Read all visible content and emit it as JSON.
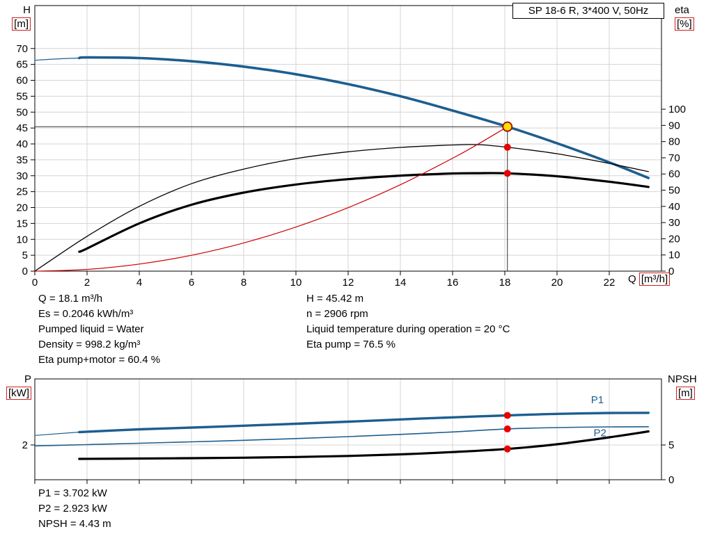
{
  "title_box": "SP 18-6 R, 3*400 V, 50Hz",
  "axis_labels": {
    "top_left": {
      "symbol": "H",
      "unit": "[m]"
    },
    "top_right": {
      "symbol": "eta",
      "unit": "[%]"
    },
    "x": {
      "symbol": "Q",
      "unit": "[m³/h]"
    },
    "bottom_left": {
      "symbol": "P",
      "unit": "[kW]"
    },
    "bottom_right": {
      "symbol": "NPSH",
      "unit": "[m]"
    }
  },
  "duty_info": {
    "col_left": [
      "Q = 18.1 m³/h",
      "Es = 0.2046 kWh/m³",
      "Pumped liquid = Water",
      "Density = 998.2 kg/m³",
      "Eta pump+motor = 60.4 %"
    ],
    "col_right": [
      "H = 45.42 m",
      "n = 2906 rpm",
      "Liquid temperature during operation = 20 °C",
      "Eta pump = 76.5 %"
    ]
  },
  "power_info": [
    "P1 = 3.702 kW",
    "P2 = 2.923 kW",
    "NPSH = 4.43 m"
  ],
  "colors": {
    "curve_blue": "#1d5e8f",
    "curve_black": "#000000",
    "system_red": "#cc0000",
    "grid": "#d4d4d4",
    "dot_red": "#e60000",
    "duty_fill": "#ffdf00",
    "duty_ring": "#aa0000",
    "ref_line": "#333333"
  },
  "chart_data": [
    {
      "type": "line",
      "name": "qh-eta-chart",
      "title": "SP 18-6 R, 3*400 V, 50Hz",
      "x_axis": {
        "label": "Q [m³/h]",
        "min": 0,
        "max": 24,
        "show_labels": true,
        "ticks": [
          0,
          2,
          4,
          6,
          8,
          10,
          12,
          14,
          16,
          18,
          20,
          22
        ]
      },
      "y_left": {
        "label": "H [m]",
        "min": 0,
        "max": 83.5,
        "ticks": [
          0,
          5,
          10,
          15,
          20,
          25,
          30,
          35,
          40,
          45,
          50,
          55,
          60,
          65,
          70
        ]
      },
      "y_right": {
        "label": "eta [%]",
        "min": 0,
        "max": 164,
        "ticks": [
          0,
          10,
          20,
          30,
          40,
          50,
          60,
          70,
          80,
          90,
          100
        ]
      },
      "series": [
        {
          "name": "head-curve-lead",
          "axis": "left",
          "color": "#1d5e8f",
          "width": 1.2,
          "points": [
            [
              0,
              66.3
            ],
            [
              0.8,
              66.7
            ],
            [
              1.7,
              67.0
            ]
          ]
        },
        {
          "name": "head-curve",
          "axis": "left",
          "color": "#1d5e8f",
          "width": 3.6,
          "points": [
            [
              1.7,
              67.0
            ],
            [
              2,
              67.2
            ],
            [
              4,
              67.0
            ],
            [
              6,
              66.0
            ],
            [
              8,
              64.3
            ],
            [
              10,
              61.9
            ],
            [
              12,
              58.8
            ],
            [
              14,
              55.0
            ],
            [
              16,
              50.5
            ],
            [
              18.1,
              45.42
            ],
            [
              20,
              40.2
            ],
            [
              22,
              34.2
            ],
            [
              23.5,
              29.3
            ]
          ]
        },
        {
          "name": "eta-pump-curve",
          "axis": "right",
          "color": "#000000",
          "width": 1.3,
          "points": [
            [
              0,
              0
            ],
            [
              2,
              21.5
            ],
            [
              4,
              40
            ],
            [
              6,
              54
            ],
            [
              8,
              63
            ],
            [
              10,
              69.5
            ],
            [
              12,
              73.7
            ],
            [
              14,
              76.4
            ],
            [
              16,
              77.9
            ],
            [
              17,
              78.1
            ],
            [
              18.1,
              76.5
            ],
            [
              20,
              72.5
            ],
            [
              22,
              66.5
            ],
            [
              23.5,
              61.5
            ]
          ]
        },
        {
          "name": "eta-pump-motor-curve",
          "axis": "right",
          "color": "#000000",
          "width": 3.2,
          "points": [
            [
              1.7,
              12
            ],
            [
              2,
              14
            ],
            [
              4,
              29.5
            ],
            [
              6,
              41
            ],
            [
              8,
              48.5
            ],
            [
              10,
              53.5
            ],
            [
              12,
              56.8
            ],
            [
              14,
              59.0
            ],
            [
              16,
              60.3
            ],
            [
              17,
              60.5
            ],
            [
              18.1,
              60.4
            ],
            [
              20,
              58.6
            ],
            [
              22,
              55.2
            ],
            [
              23.5,
              52.0
            ]
          ]
        },
        {
          "name": "system-curve",
          "axis": "left",
          "color": "#cc0000",
          "width": 1.2,
          "points": [
            [
              0,
              0
            ],
            [
              2,
              0.55
            ],
            [
              4,
              2.22
            ],
            [
              6,
              4.99
            ],
            [
              8,
              8.87
            ],
            [
              10,
              13.86
            ],
            [
              12,
              19.96
            ],
            [
              14,
              27.17
            ],
            [
              16,
              35.49
            ],
            [
              17,
              40.06
            ],
            [
              18.1,
              45.42
            ]
          ]
        }
      ],
      "ref_lines": [
        {
          "name": "duty-flow-line",
          "type": "v",
          "x": 18.1,
          "axis": "left",
          "from": 0,
          "to": 45.42,
          "color": "#333333"
        },
        {
          "name": "duty-head-line",
          "type": "h",
          "value": 45.42,
          "axis": "left",
          "from": 0,
          "to": 18.1,
          "color": "#333333"
        }
      ],
      "markers": [
        {
          "name": "eta-pump-operating-point",
          "q": 18.1,
          "value": 76.5,
          "axis": "right",
          "style": "dot"
        },
        {
          "name": "eta-motor-operating-point",
          "q": 18.1,
          "value": 60.4,
          "axis": "right",
          "style": "dot"
        },
        {
          "name": "duty-point",
          "q": 18.1,
          "value": 45.42,
          "axis": "left",
          "style": "duty"
        }
      ],
      "series_labels": []
    },
    {
      "type": "line",
      "name": "power-npsh-chart",
      "title": "",
      "x_axis": {
        "label": "",
        "min": 0,
        "max": 24,
        "show_labels": false,
        "ticks": [
          0,
          2,
          4,
          6,
          8,
          10,
          12,
          14,
          16,
          18,
          20,
          22
        ]
      },
      "y_left": {
        "label": "P [kW]",
        "min": 0,
        "max": 5.8,
        "ticks": [
          2
        ]
      },
      "y_right": {
        "label": "NPSH [m]",
        "min": 0,
        "max": 14.5,
        "ticks": [
          0,
          5
        ]
      },
      "series": [
        {
          "name": "p1-curve-lead",
          "axis": "left",
          "color": "#1d5e8f",
          "width": 1.2,
          "points": [
            [
              0,
              2.55
            ],
            [
              1.7,
              2.74
            ]
          ]
        },
        {
          "name": "p1-curve",
          "axis": "left",
          "color": "#1d5e8f",
          "width": 3.4,
          "points": [
            [
              1.7,
              2.74
            ],
            [
              4,
              2.9
            ],
            [
              6,
              3.0
            ],
            [
              8,
              3.11
            ],
            [
              10,
              3.22
            ],
            [
              12,
              3.34
            ],
            [
              14,
              3.47
            ],
            [
              16,
              3.59
            ],
            [
              18.1,
              3.702
            ],
            [
              20,
              3.79
            ],
            [
              22,
              3.84
            ],
            [
              23.5,
              3.85
            ]
          ]
        },
        {
          "name": "p2-curve",
          "axis": "left",
          "color": "#1d5e8f",
          "width": 1.6,
          "points": [
            [
              0,
              1.95
            ],
            [
              2,
              2.02
            ],
            [
              4,
              2.1
            ],
            [
              6,
              2.18
            ],
            [
              8,
              2.27
            ],
            [
              10,
              2.37
            ],
            [
              12,
              2.48
            ],
            [
              14,
              2.61
            ],
            [
              16,
              2.75
            ],
            [
              18.1,
              2.923
            ],
            [
              20,
              3.0
            ],
            [
              22,
              3.04
            ],
            [
              23.5,
              3.05
            ]
          ]
        },
        {
          "name": "npsh-curve",
          "axis": "right",
          "color": "#000000",
          "width": 3.2,
          "points": [
            [
              1.7,
              3.0
            ],
            [
              4,
              3.05
            ],
            [
              6,
              3.1
            ],
            [
              8,
              3.17
            ],
            [
              10,
              3.27
            ],
            [
              12,
              3.42
            ],
            [
              14,
              3.65
            ],
            [
              16,
              3.98
            ],
            [
              18.1,
              4.43
            ],
            [
              20,
              5.1
            ],
            [
              22,
              6.1
            ],
            [
              23.5,
              6.95
            ]
          ]
        }
      ],
      "ref_lines": [],
      "markers": [
        {
          "name": "p1-operating-point",
          "q": 18.1,
          "value": 3.702,
          "axis": "left",
          "style": "dot"
        },
        {
          "name": "p2-operating-point",
          "q": 18.1,
          "value": 2.923,
          "axis": "left",
          "style": "dot"
        },
        {
          "name": "npsh-operating-point",
          "q": 18.1,
          "value": 4.43,
          "axis": "right",
          "style": "dot"
        }
      ],
      "series_labels": [
        {
          "name": "p1-label",
          "text": "P1",
          "q": 21.3,
          "value": 4.4,
          "axis": "left",
          "color": "#1d5e8f"
        },
        {
          "name": "p2-label",
          "text": "P2",
          "q": 21.4,
          "value": 2.5,
          "axis": "left",
          "color": "#1d5e8f"
        }
      ]
    }
  ]
}
